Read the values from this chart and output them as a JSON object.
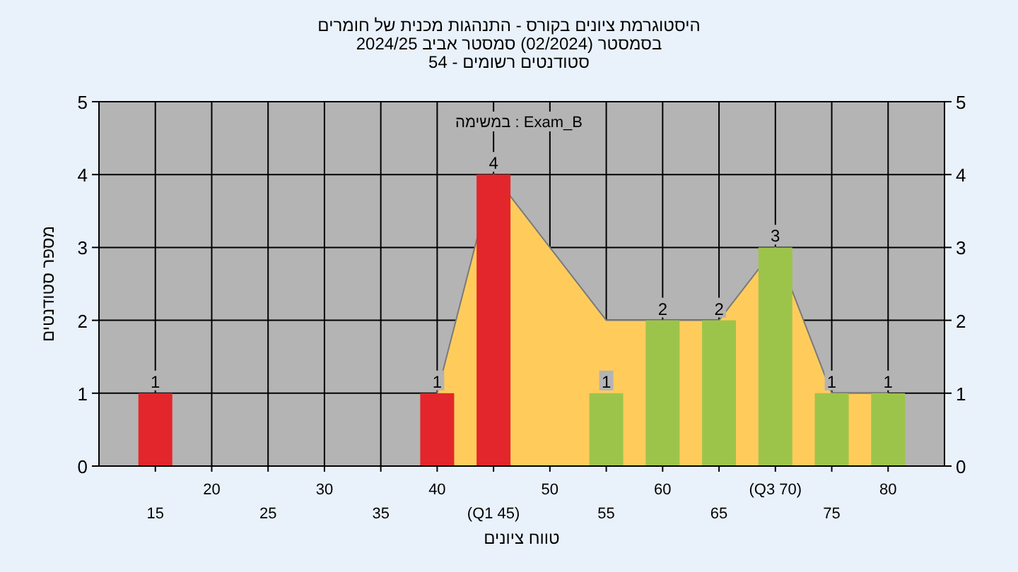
{
  "chart_data": {
    "type": "bar",
    "title": "היסטוגרמת ציונים בקורס - התנהגות מכנית של חומרים",
    "subtitle": "בסמסטר  (02/2024)  סמסטר אביב 2024/25\nסטודנטים רשומים - 54",
    "xlabel": "טווח ציונים",
    "ylabel": "מספר סטודנטים",
    "annotations": [
      "במשימה : Exam_B"
    ],
    "categories": [
      "15",
      "20",
      "25",
      "30",
      "35",
      "40",
      "(Q1 45)",
      "50",
      "55",
      "60",
      "65",
      "(Q3 70)",
      "75",
      "80"
    ],
    "series": [
      {
        "type": "area",
        "color": "#ffcc5c",
        "values": [
          null,
          null,
          null,
          null,
          null,
          1,
          4,
          3,
          2,
          2,
          2,
          3,
          1,
          1
        ]
      },
      {
        "colors": [
          "#e3262b",
          null,
          null,
          null,
          null,
          "#e3262b",
          "#e3262b",
          null,
          "#9dc44a",
          "#9dc44a",
          "#9dc44a",
          "#9dc44a",
          "#9dc44a",
          "#9dc44a"
        ],
        "values": [
          1,
          null,
          null,
          null,
          null,
          1,
          4,
          null,
          1,
          2,
          2,
          3,
          1,
          1
        ],
        "value_labels": [
          "1",
          null,
          null,
          null,
          null,
          "1",
          "4",
          null,
          "1",
          "2",
          "2",
          "3",
          "1",
          "1"
        ]
      }
    ],
    "ylim": [
      0,
      5
    ],
    "yticks": [
      0,
      1,
      2,
      3,
      4,
      5
    ],
    "y2lim": [
      0,
      5
    ],
    "y2ticks": [
      0,
      1,
      2,
      3,
      4,
      5
    ],
    "grid": true
  }
}
